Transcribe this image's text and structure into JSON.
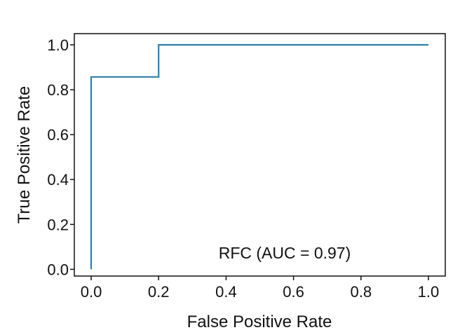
{
  "chart_data": {
    "type": "line",
    "title": "",
    "xlabel": "False Positive Rate",
    "ylabel": "True Positive Rate",
    "xlim": [
      -0.05,
      1.05
    ],
    "ylim": [
      -0.03,
      1.05
    ],
    "x_ticks": [
      0.0,
      0.2,
      0.4,
      0.6,
      0.8,
      1.0
    ],
    "x_tick_labels": [
      "0.0",
      "0.2",
      "0.4",
      "0.6",
      "0.8",
      "1.0"
    ],
    "y_ticks": [
      0.0,
      0.2,
      0.4,
      0.6,
      0.8,
      1.0
    ],
    "y_tick_labels": [
      "0.0",
      "0.2",
      "0.4",
      "0.6",
      "0.8",
      "1.0"
    ],
    "grid": false,
    "legend_position": "lower-right",
    "series": [
      {
        "name": "RFC (AUC = 0.97)",
        "color": "#2f7fa8",
        "x": [
          0.0,
          0.0,
          0.2,
          0.2,
          1.0
        ],
        "y": [
          0.0,
          0.857,
          0.857,
          1.0,
          1.0
        ]
      }
    ]
  }
}
